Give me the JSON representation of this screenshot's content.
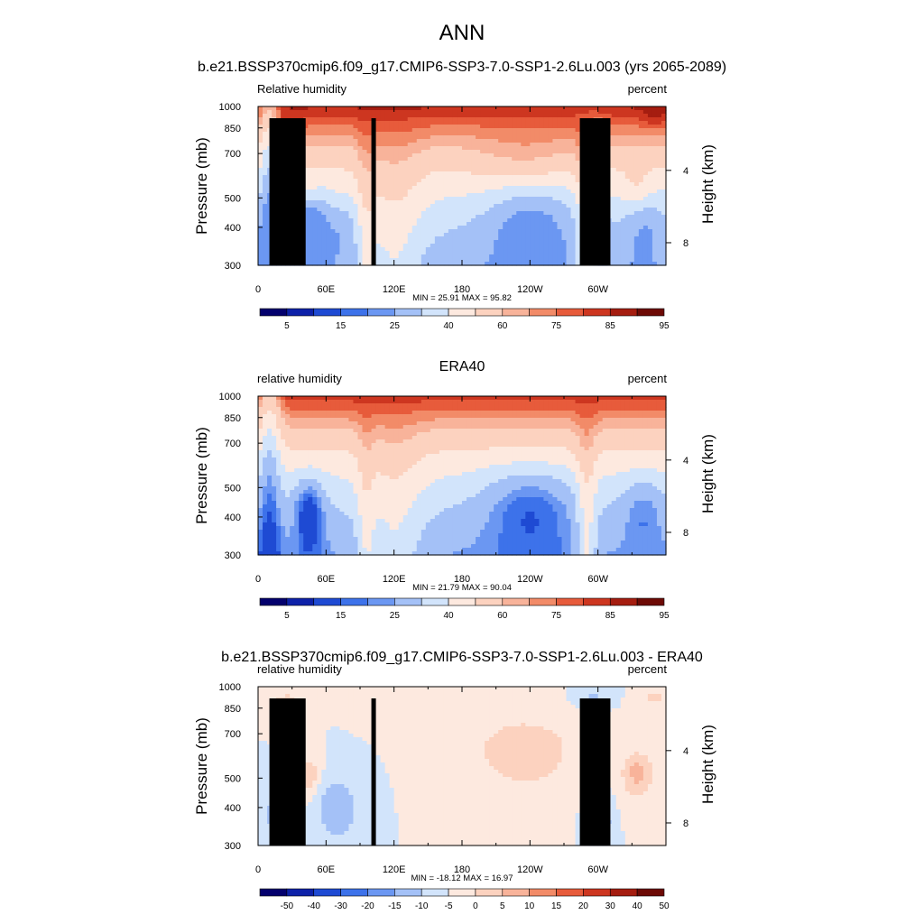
{
  "header": {
    "title": "ANN",
    "subtitle": "b.e21.BSSP370cmip6.f09_g17.CMIP6-SSP3-7.0-SSP1-2.6Lu.003 (yrs 2065-2089)"
  },
  "colors": {
    "rh_scale": [
      "#03006d",
      "#0d21a8",
      "#1e4ad3",
      "#3d72ea",
      "#6b97f2",
      "#a4c1f7",
      "#d2e4fb",
      "#fde9df",
      "#fcd2bf",
      "#f8b39a",
      "#f28b68",
      "#e75b3b",
      "#cd3620",
      "#a51d10",
      "#6d0a05"
    ],
    "diff_scale": [
      "#03006d",
      "#0d21a8",
      "#1e4ad3",
      "#3d72ea",
      "#6b97f2",
      "#a4c1f7",
      "#d2e4fb",
      "#fde9df",
      "#fcd2bf",
      "#f8b39a",
      "#f28b68",
      "#e75b3b",
      "#cd3620",
      "#a51d10",
      "#6d0a05"
    ],
    "topography": "#000000"
  },
  "chart_data": [
    {
      "type": "heatmap",
      "title": "",
      "left_label": "Relative humidity",
      "right_label": "percent",
      "ylabel": "Pressure (mb)",
      "y2label": "Height (km)",
      "yticks": [
        300,
        400,
        500,
        700,
        850,
        1000
      ],
      "y2ticks": [
        8,
        4
      ],
      "xticks": [
        "0",
        "60E",
        "120E",
        "180",
        "120W",
        "60W"
      ],
      "xlim": [
        0,
        360
      ],
      "ylim": [
        1000,
        300
      ],
      "stats": "MIN =  25.91  MAX =  95.82",
      "colorbar_labels": [
        "5",
        "15",
        "25",
        "40",
        "60",
        "75",
        "85",
        "95"
      ],
      "variant": "model",
      "colorbar_levels": [
        0,
        5,
        10,
        15,
        20,
        25,
        30,
        40,
        50,
        60,
        70,
        75,
        80,
        85,
        90,
        95,
        100
      ]
    },
    {
      "type": "heatmap",
      "title": "ERA40",
      "left_label": "relative humidity",
      "right_label": "percent",
      "ylabel": "Pressure (mb)",
      "y2label": "Height (km)",
      "yticks": [
        300,
        400,
        500,
        700,
        850,
        1000
      ],
      "y2ticks": [
        8,
        4
      ],
      "xticks": [
        "0",
        "60E",
        "120E",
        "180",
        "120W",
        "60W"
      ],
      "xlim": [
        0,
        360
      ],
      "ylim": [
        1000,
        300
      ],
      "stats": "MIN =  21.79  MAX =  90.04",
      "colorbar_labels": [
        "5",
        "15",
        "25",
        "40",
        "60",
        "75",
        "85",
        "95"
      ],
      "variant": "obs",
      "colorbar_levels": [
        0,
        5,
        10,
        15,
        20,
        25,
        30,
        40,
        50,
        60,
        70,
        75,
        80,
        85,
        90,
        95,
        100
      ]
    },
    {
      "type": "heatmap",
      "title": "b.e21.BSSP370cmip6.f09_g17.CMIP6-SSP3-7.0-SSP1-2.6Lu.003 - ERA40",
      "left_label": "relative humidity",
      "right_label": "percent",
      "ylabel": "Pressure (mb)",
      "y2label": "Height (km)",
      "yticks": [
        300,
        400,
        500,
        700,
        850,
        1000
      ],
      "y2ticks": [
        8,
        4
      ],
      "xticks": [
        "0",
        "60E",
        "120E",
        "180",
        "120W",
        "60W"
      ],
      "xlim": [
        0,
        360
      ],
      "ylim": [
        1000,
        300
      ],
      "stats": "MIN = -18.12  MAX =  16.97",
      "colorbar_labels": [
        "-50",
        "-40",
        "-30",
        "-20",
        "-15",
        "-10",
        "-5",
        "0",
        "5",
        "10",
        "15",
        "20",
        "30",
        "40",
        "50"
      ],
      "variant": "diff",
      "colorbar_levels": [
        -60,
        -50,
        -40,
        -30,
        -20,
        -15,
        -10,
        -5,
        0,
        5,
        10,
        15,
        20,
        30,
        40,
        50,
        60
      ]
    }
  ]
}
